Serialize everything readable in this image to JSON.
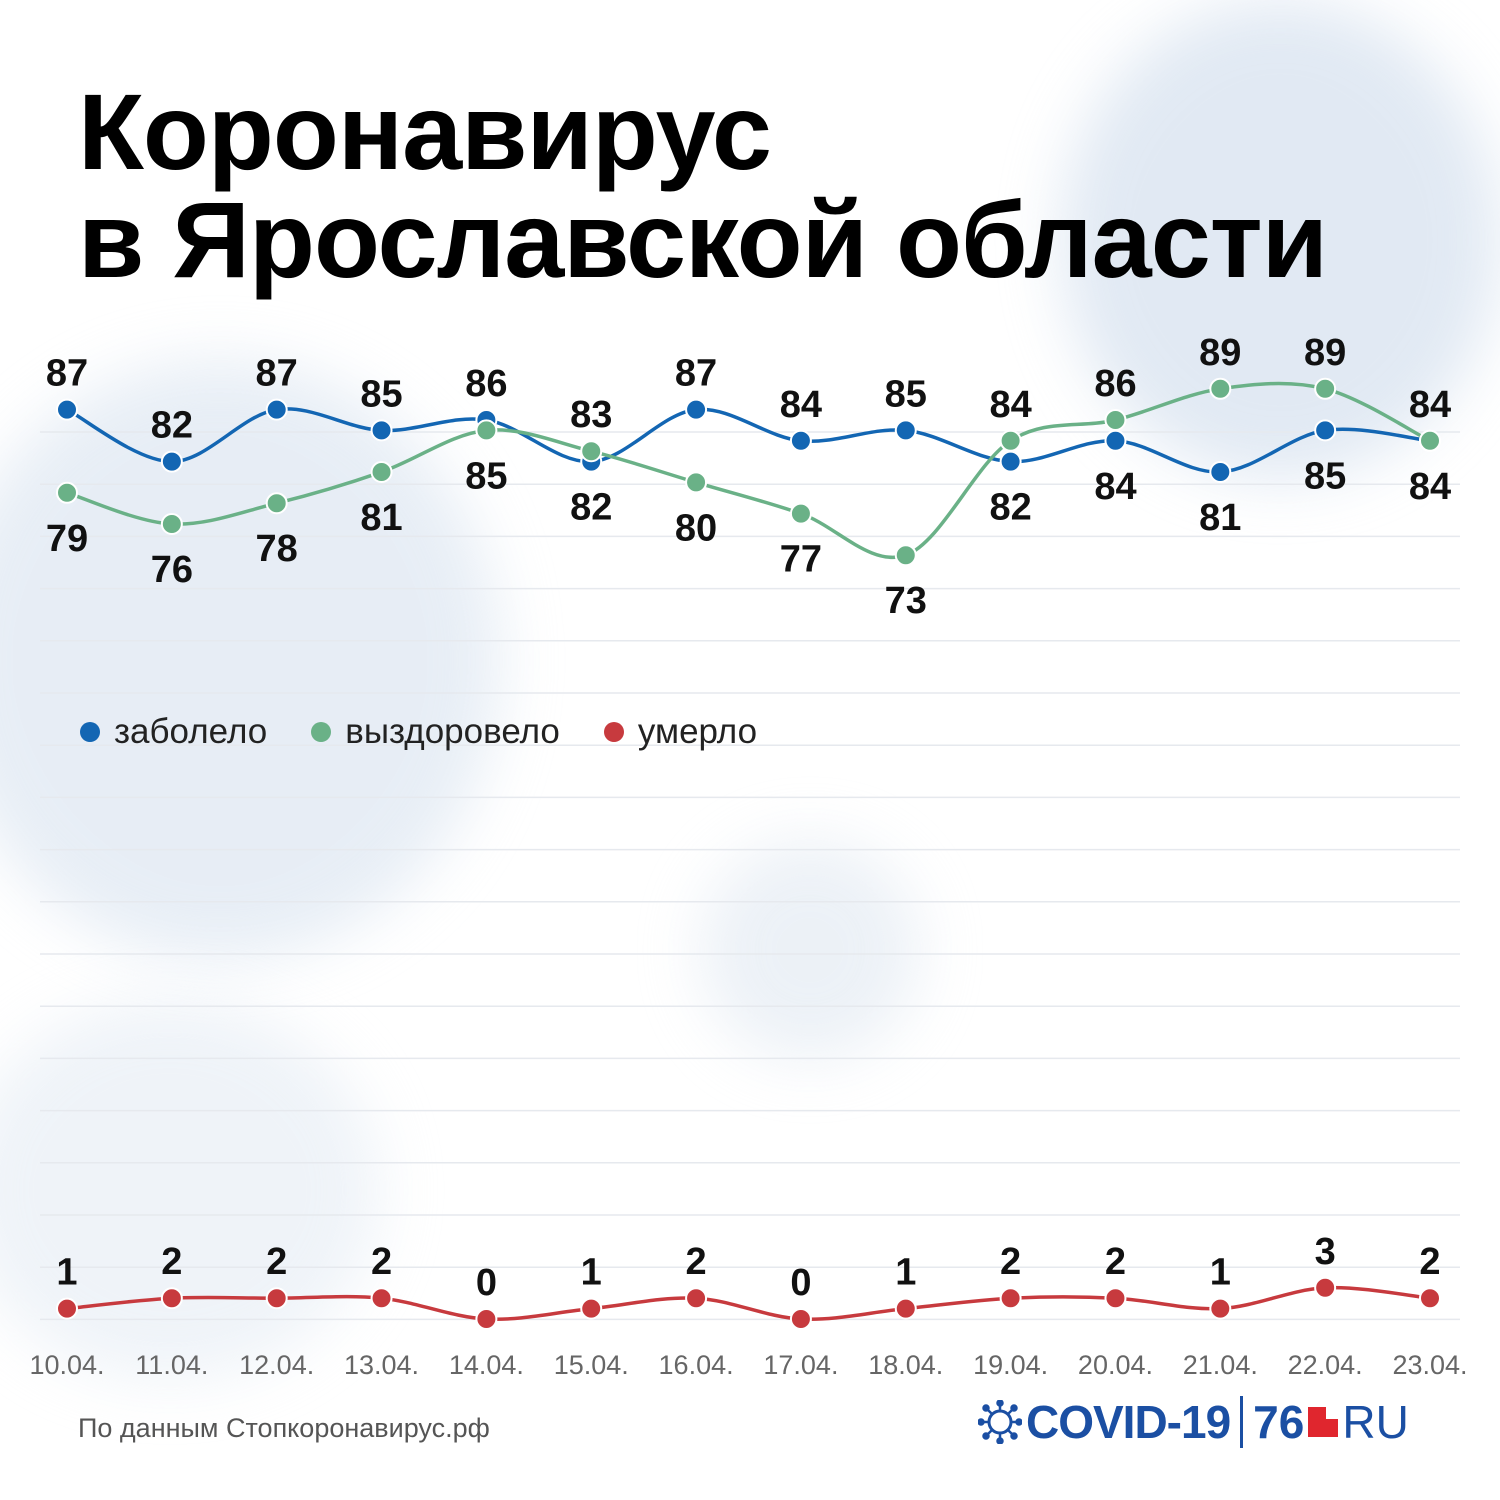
{
  "title": {
    "line1": "Коронавирус",
    "line2": "в Ярославской области"
  },
  "legend": [
    {
      "label": "заболело",
      "color": "#1366b3"
    },
    {
      "label": "выздоровело",
      "color": "#6ab187"
    },
    {
      "label": "умерло",
      "color": "#c73a3e"
    }
  ],
  "source": "По данным Стопкоронавирус.рф",
  "logo": {
    "covid": "COVID-19",
    "num": "76",
    "ru": "RU"
  },
  "chart_data": {
    "type": "line",
    "x": [
      "10.04.",
      "11.04.",
      "12.04.",
      "13.04.",
      "14.04.",
      "15.04.",
      "16.04.",
      "17.04.",
      "18.04.",
      "19.04.",
      "20.04.",
      "21.04.",
      "22.04.",
      "23.04."
    ],
    "series": [
      {
        "name": "заболело",
        "color": "#1366b3",
        "values": [
          87,
          82,
          87,
          85,
          86,
          82,
          87,
          84,
          85,
          82,
          84,
          81,
          85,
          84
        ]
      },
      {
        "name": "выздоровело",
        "color": "#6ab187",
        "values": [
          79,
          76,
          78,
          81,
          85,
          83,
          80,
          77,
          73,
          84,
          86,
          89,
          89,
          84
        ]
      },
      {
        "name": "умерло",
        "color": "#c73a3e",
        "values": [
          1,
          2,
          2,
          2,
          0,
          1,
          2,
          0,
          1,
          2,
          2,
          1,
          3,
          2
        ]
      }
    ],
    "grid": true,
    "legend_position": "middle-left"
  }
}
